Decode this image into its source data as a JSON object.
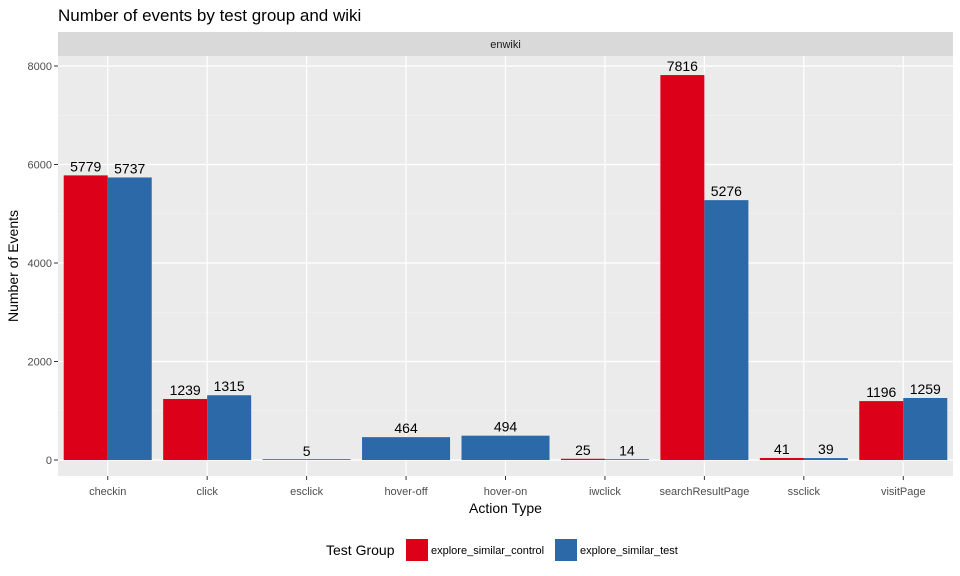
{
  "chart_data": {
    "type": "bar",
    "title": "Number of events by test group and wiki",
    "facet": "enwiki",
    "xlabel": "Action Type",
    "ylabel": "Number of Events",
    "categories": [
      "checkin",
      "click",
      "esclick",
      "hover-off",
      "hover-on",
      "iwclick",
      "searchResultPage",
      "ssclick",
      "visitPage"
    ],
    "series": [
      {
        "name": "explore_similar_control",
        "color": "#dc0018",
        "values": [
          5779,
          1239,
          null,
          null,
          null,
          25,
          7816,
          41,
          1196
        ]
      },
      {
        "name": "explore_similar_test",
        "color": "#2b69a8",
        "values": [
          5737,
          1315,
          5,
          464,
          494,
          14,
          5276,
          39,
          1259
        ]
      }
    ],
    "ylim": [
      0,
      8300
    ],
    "yticks": [
      0,
      2000,
      4000,
      6000,
      8000
    ],
    "grid": true,
    "legend": {
      "title": "Test Group",
      "position": "bottom"
    }
  }
}
